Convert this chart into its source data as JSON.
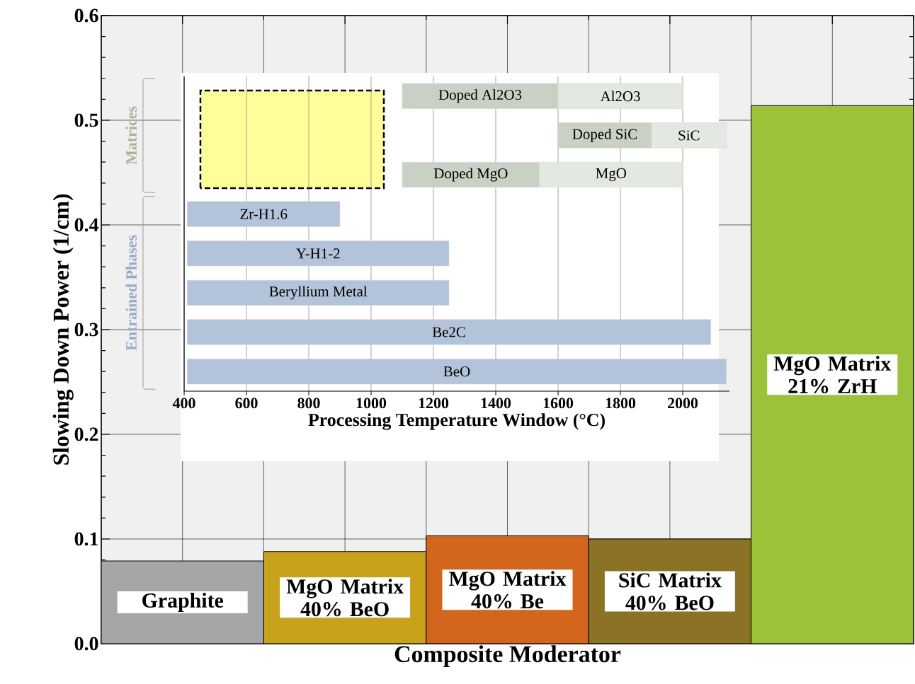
{
  "chart_data": [
    {
      "type": "bar",
      "xlabel": "Composite Moderator",
      "ylabel": "Slowing Down Power (1/cm)",
      "categories": [
        "Graphite",
        "MgO Matrix 40% BeO",
        "MgO Matrix 40% Be",
        "SiC Matrix 40% BeO",
        "MgO Matrix 21% ZrH"
      ],
      "values": [
        0.079,
        0.088,
        0.103,
        0.1,
        0.514
      ],
      "colors": [
        "#a6a6a6",
        "#c9a21c",
        "#d2661c",
        "#8c7224",
        "#9cc23a"
      ],
      "ylim": [
        0,
        0.6
      ],
      "yticks": [
        {
          "value": 0,
          "label": "0.0"
        },
        {
          "value": 0.1,
          "label": "0.1"
        },
        {
          "value": 0.2,
          "label": "0.2"
        },
        {
          "value": 0.3,
          "label": "0.3"
        },
        {
          "value": 0.4,
          "label": "0.4"
        },
        {
          "value": 0.5,
          "label": "0.5"
        },
        {
          "value": 0.6,
          "label": "0.6"
        }
      ],
      "grid": true
    },
    {
      "type": "bar",
      "orientation": "horizontal",
      "xlabel": "Processing Temperature Window (°C)",
      "categories": [
        null,
        null,
        null,
        null,
        null,
        null,
        null,
        null
      ],
      "series": [
        {
          "colors": [
            "#c8d1c3",
            "#c8d1c3",
            "#c8d1c3",
            "#b3c3da",
            "#b3c3da",
            "#b3c3da",
            "#b3c3da",
            "#b3c3da"
          ],
          "base": [
            1100,
            1600,
            1100,
            410,
            410,
            410,
            410,
            410
          ],
          "values": [
            500,
            300,
            440,
            490,
            840,
            840,
            1680,
            1730
          ],
          "value_labels": [
            "Doped Al2O3",
            "Doped SiC",
            "Doped MgO",
            "Zr-H1.6",
            "Y-H1-2",
            "Beryllium Metal",
            "Be2C",
            "BeO"
          ]
        },
        {
          "color": "#e3e8e1",
          "base": [
            1600,
            1900,
            1540,
            null,
            null,
            null,
            null,
            null
          ],
          "values": [
            400,
            240,
            460,
            null,
            null,
            null,
            null,
            null
          ],
          "value_labels": [
            "Al2O3",
            "SiC",
            "MgO",
            null,
            null,
            null,
            null,
            null
          ]
        }
      ],
      "xlim": [
        400,
        2150
      ],
      "xticks": [
        400,
        600,
        800,
        1000,
        1200,
        1400,
        1600,
        1800,
        2000
      ],
      "grid": "x",
      "annotations": [
        "Matrices",
        "Entrained Phases"
      ]
    }
  ]
}
